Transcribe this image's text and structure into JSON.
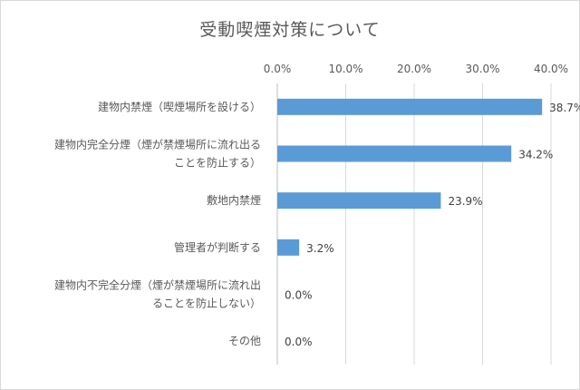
{
  "chart_data": {
    "type": "bar",
    "orientation": "horizontal",
    "title": "受動喫煙対策について",
    "categories": [
      [
        "建物内禁煙（喫煙場所を設ける）"
      ],
      [
        "建物内完全分煙（煙が禁煙場所に流れ出る",
        "ことを防止する）"
      ],
      [
        "敷地内禁煙"
      ],
      [
        "管理者が判断する"
      ],
      [
        "建物内不完全分煙（煙が禁煙場所に流れ出",
        "ることを防止しない）"
      ],
      [
        "その他"
      ]
    ],
    "values": [
      38.7,
      34.2,
      23.9,
      3.2,
      0.0,
      0.0
    ],
    "data_labels": [
      "38.7%",
      "34.2%",
      "23.9%",
      "3.2%",
      "0.0%",
      "0.0%"
    ],
    "xlim": [
      0,
      40
    ],
    "ticks": [
      0,
      10,
      20,
      30,
      40
    ],
    "tick_labels": [
      "0.0%",
      "10.0%",
      "20.0%",
      "30.0%",
      "40.0%"
    ],
    "axis_position": "top",
    "grid": true,
    "bar_color": "#5b9bd5"
  }
}
